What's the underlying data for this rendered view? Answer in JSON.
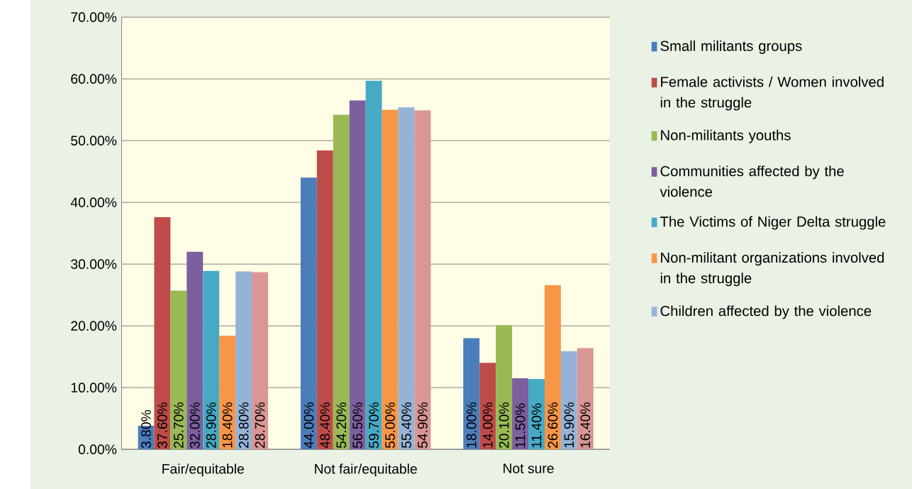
{
  "chart_data": {
    "type": "bar",
    "categories": [
      "Fair/equitable",
      "Not fair/equitable",
      "Not sure"
    ],
    "series": [
      {
        "name": "Small militants groups",
        "color": "#4a7ebb",
        "values": [
          3.8,
          44.0,
          18.0
        ],
        "value_labels": [
          "3.80%",
          "44.00%",
          "18.00%"
        ]
      },
      {
        "name": "Female activists / Women involved in the struggle",
        "color": "#be4b48",
        "values": [
          37.6,
          48.4,
          14.0
        ],
        "value_labels": [
          "37.60%",
          "48.40%",
          "14.00%"
        ]
      },
      {
        "name": "Non-militants youths",
        "color": "#98b954",
        "values": [
          25.7,
          54.2,
          20.1
        ],
        "value_labels": [
          "25.70%",
          "54.20%",
          "20.10%"
        ]
      },
      {
        "name": "Communities affected by the violence",
        "color": "#7d5fa0",
        "values": [
          32.0,
          56.5,
          11.5
        ],
        "value_labels": [
          "32.00%",
          "56.50%",
          "11.50%"
        ]
      },
      {
        "name": "The Victims of Niger Delta struggle",
        "color": "#46aac5",
        "values": [
          28.9,
          59.7,
          11.4
        ],
        "value_labels": [
          "28.90%",
          "59.70%",
          "11.40%"
        ]
      },
      {
        "name": "Non-militant organizations involved in the struggle",
        "color": "#f79646",
        "values": [
          18.4,
          55.0,
          26.6
        ],
        "value_labels": [
          "18.40%",
          "55.00%",
          "26.60%"
        ]
      },
      {
        "name": "Children affected by the violence",
        "color": "#95b3d7",
        "values": [
          28.8,
          55.4,
          15.9
        ],
        "value_labels": [
          "28.80%",
          "55.40%",
          "15.90%"
        ]
      },
      {
        "color": "#d99694",
        "values": [
          28.7,
          54.9,
          16.4
        ],
        "value_labels": [
          "28.70%",
          "54.90%",
          "16.40%"
        ]
      }
    ],
    "ylim": [
      0,
      70
    ],
    "yticks": [
      {
        "value": 0,
        "label": "0.00%"
      },
      {
        "value": 10,
        "label": "10.00%"
      },
      {
        "value": 20,
        "label": "20.00%"
      },
      {
        "value": 30,
        "label": "30.00%"
      },
      {
        "value": 40,
        "label": "40.00%"
      },
      {
        "value": 50,
        "label": "50.00%"
      },
      {
        "value": 60,
        "label": "60.00%"
      },
      {
        "value": 70,
        "label": "70.00%"
      }
    ],
    "grid": "y",
    "legend": "right"
  }
}
